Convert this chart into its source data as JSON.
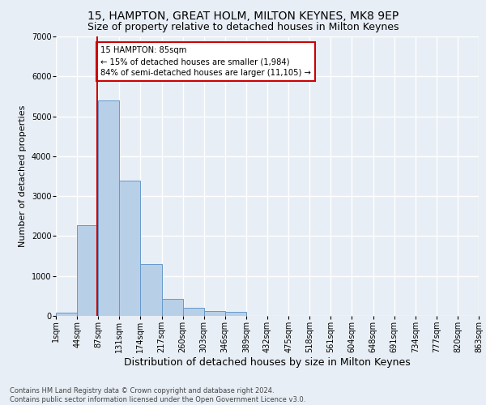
{
  "title1": "15, HAMPTON, GREAT HOLM, MILTON KEYNES, MK8 9EP",
  "title2": "Size of property relative to detached houses in Milton Keynes",
  "xlabel": "Distribution of detached houses by size in Milton Keynes",
  "ylabel": "Number of detached properties",
  "footnote": "Contains HM Land Registry data © Crown copyright and database right 2024.\nContains public sector information licensed under the Open Government Licence v3.0.",
  "bin_labels": [
    "1sqm",
    "44sqm",
    "87sqm",
    "131sqm",
    "174sqm",
    "217sqm",
    "260sqm",
    "303sqm",
    "346sqm",
    "389sqm",
    "432sqm",
    "475sqm",
    "518sqm",
    "561sqm",
    "604sqm",
    "648sqm",
    "691sqm",
    "734sqm",
    "777sqm",
    "820sqm",
    "863sqm"
  ],
  "bar_heights": [
    75,
    2270,
    5400,
    3380,
    1290,
    430,
    200,
    120,
    110,
    0,
    0,
    0,
    0,
    0,
    0,
    0,
    0,
    0,
    0,
    0
  ],
  "bar_color": "#b8cfe8",
  "bar_edge_color": "#6699cc",
  "red_line_color": "#cc0000",
  "annotation_text": "15 HAMPTON: 85sqm\n← 15% of detached houses are smaller (1,984)\n84% of semi-detached houses are larger (11,105) →",
  "annotation_box_color": "#ffffff",
  "annotation_box_edge": "#cc0000",
  "ylim": [
    0,
    7000
  ],
  "yticks": [
    0,
    1000,
    2000,
    3000,
    4000,
    5000,
    6000,
    7000
  ],
  "background_color": "#e8eef5",
  "grid_color": "#ffffff",
  "title1_fontsize": 10,
  "title2_fontsize": 9,
  "xlabel_fontsize": 9,
  "ylabel_fontsize": 8,
  "tick_fontsize": 7,
  "footnote_fontsize": 6
}
